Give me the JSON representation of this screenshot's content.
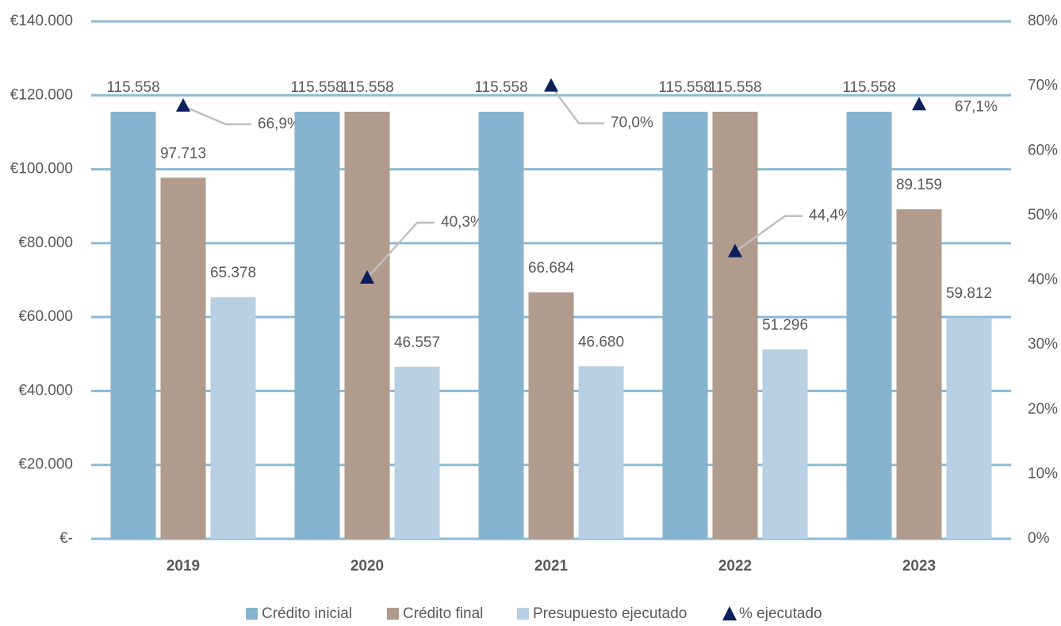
{
  "chart_data": {
    "type": "bar",
    "categories": [
      "2019",
      "2020",
      "2021",
      "2022",
      "2023"
    ],
    "series": [
      {
        "name": "Crédito inicial",
        "color": "#86b3cf",
        "values": [
          115558,
          115558,
          115558,
          115558,
          115558
        ],
        "value_labels": [
          "115.558",
          "115.558",
          "115.558",
          "115.558",
          "115.558"
        ]
      },
      {
        "name": "Crédito final",
        "color": "#b09b8c",
        "values": [
          97713,
          115558,
          66684,
          115558,
          89159
        ],
        "value_labels": [
          "97.713",
          "115.558",
          "66.684",
          "115.558",
          "89.159"
        ]
      },
      {
        "name": "Presupuesto ejecutado",
        "color": "#b8d0e3",
        "values": [
          65378,
          46557,
          46680,
          51296,
          59812
        ],
        "value_labels": [
          "65.378",
          "46.557",
          "46.680",
          "51.296",
          "59.812"
        ]
      },
      {
        "name": "% ejecutado",
        "color": "#0d1f5c",
        "axis": "y2",
        "type": "scatter",
        "values": [
          66.9,
          40.3,
          70.0,
          44.4,
          67.1
        ],
        "value_labels": [
          "66,9%",
          "40,3%",
          "70,0%",
          "44,4%",
          "67,1%"
        ]
      }
    ],
    "ylim": [
      0,
      140000
    ],
    "yticks": [
      {
        "value": 0,
        "label": "€-"
      },
      {
        "value": 20000,
        "label": "€20.000"
      },
      {
        "value": 40000,
        "label": "€40.000"
      },
      {
        "value": 60000,
        "label": "€60.000"
      },
      {
        "value": 80000,
        "label": "€80.000"
      },
      {
        "value": 100000,
        "label": "€100.000"
      },
      {
        "value": 120000,
        "label": "€120.000"
      },
      {
        "value": 140000,
        "label": "€140.000"
      }
    ],
    "y2lim": [
      0,
      80
    ],
    "y2ticks": [
      {
        "value": 0,
        "label": "0%"
      },
      {
        "value": 10,
        "label": "10%"
      },
      {
        "value": 20,
        "label": "20%"
      },
      {
        "value": 30,
        "label": "30%"
      },
      {
        "value": 40,
        "label": "40%"
      },
      {
        "value": 50,
        "label": "50%"
      },
      {
        "value": 60,
        "label": "60%"
      },
      {
        "value": 70,
        "label": "70%"
      },
      {
        "value": 80,
        "label": "80%"
      }
    ],
    "grid": true,
    "legend": "bottom"
  }
}
